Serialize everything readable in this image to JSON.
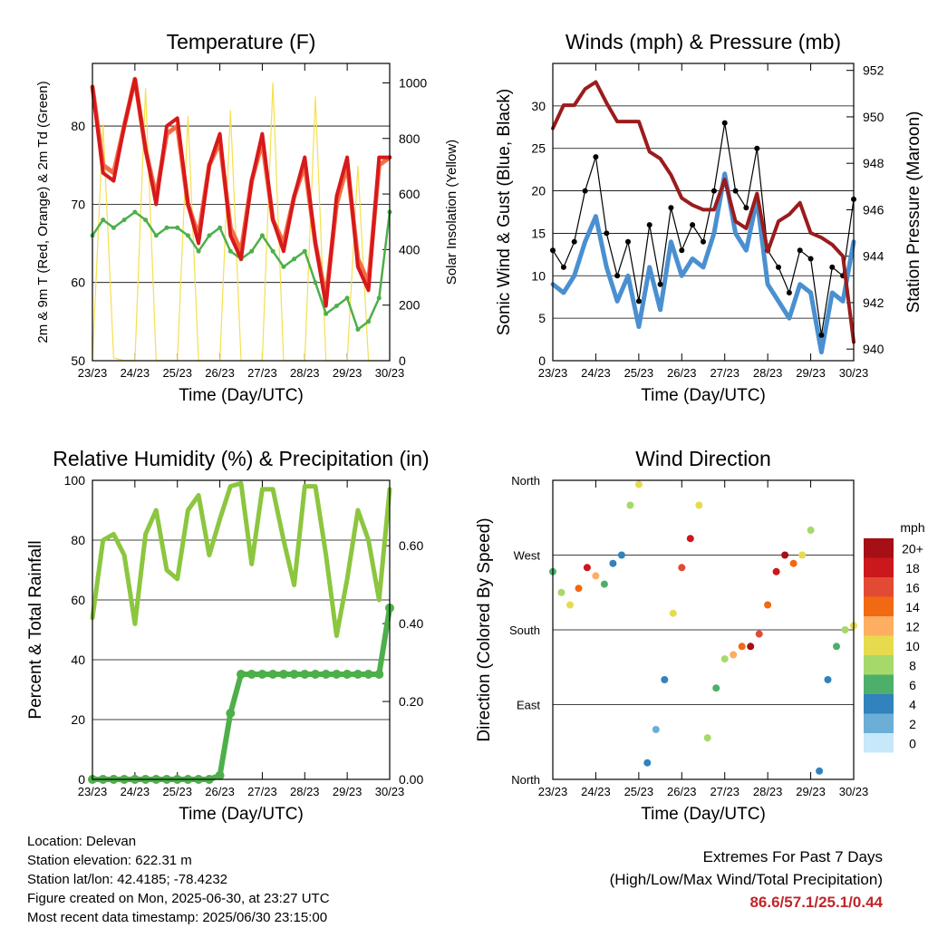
{
  "time_axis": {
    "ticks": [
      "23/23",
      "24/23",
      "25/23",
      "26/23",
      "27/23",
      "28/23",
      "29/23",
      "30/23"
    ],
    "label": "Time (Day/UTC)"
  },
  "colors": {
    "temp_2m": "#d7191c",
    "temp_9m": "#f46d43",
    "dewpoint": "#4daf4a",
    "insolation": "#f5e04d",
    "gust": "#000000",
    "sonic_wind": "#4a90d0",
    "pressure": "#9b1c1c",
    "rh": "#8cc63f",
    "precip": "#4daf4a",
    "extremes": "#c0262b"
  },
  "chart_data": [
    {
      "type": "line",
      "title": "Temperature (F)",
      "xlabel": "Time (Day/UTC)",
      "ylabel": "2m & 9m T (Red, Orange) & 2m Td (Green)",
      "y2label": "Solar Insolation (Yellow)",
      "x": [
        0,
        0.25,
        0.5,
        0.75,
        1,
        1.25,
        1.5,
        1.75,
        2,
        2.25,
        2.5,
        2.75,
        3,
        3.25,
        3.5,
        3.75,
        4,
        4.25,
        4.5,
        4.75,
        5,
        5.25,
        5.5,
        5.75,
        6,
        6.25,
        6.5,
        6.75,
        7
      ],
      "ylim": [
        50,
        88
      ],
      "yticks": [
        50,
        60,
        70,
        80
      ],
      "y2lim": [
        0,
        1070
      ],
      "y2ticks": [
        0,
        200,
        400,
        600,
        800,
        1000
      ],
      "series": [
        {
          "name": "2m T",
          "axis": "left",
          "values": [
            85,
            74,
            73,
            80,
            86,
            77,
            70,
            80,
            81,
            70,
            65,
            75,
            79,
            66,
            63,
            73,
            79,
            68,
            64,
            71,
            76,
            65,
            57,
            71,
            76,
            62,
            59,
            76,
            76
          ]
        },
        {
          "name": "9m T",
          "axis": "left",
          "values": [
            85,
            75,
            74,
            80,
            86,
            77,
            71,
            79,
            80,
            70,
            66,
            75,
            78,
            67,
            64,
            73,
            78,
            68,
            65,
            71,
            75,
            65,
            58,
            70,
            75,
            63,
            60,
            75,
            76
          ]
        },
        {
          "name": "2m Td",
          "axis": "left",
          "values": [
            66,
            68,
            67,
            68,
            69,
            68,
            66,
            67,
            67,
            66,
            64,
            66,
            67,
            64,
            63,
            64,
            66,
            64,
            62,
            63,
            64,
            60,
            56,
            57,
            58,
            54,
            55,
            58,
            69
          ]
        },
        {
          "name": "Solar Insolation",
          "axis": "right",
          "values": [
            0,
            850,
            10,
            0,
            0,
            980,
            0,
            0,
            0,
            880,
            0,
            0,
            0,
            900,
            0,
            0,
            0,
            1000,
            0,
            0,
            0,
            950,
            0,
            0,
            0,
            700,
            0,
            0,
            0
          ]
        }
      ]
    },
    {
      "type": "line",
      "title": "Winds (mph) & Pressure (mb)",
      "xlabel": "Time (Day/UTC)",
      "ylabel": "Sonic Wind & Gust (Blue, Black)",
      "y2label": "Station Pressure (Maroon)",
      "x": [
        0,
        0.25,
        0.5,
        0.75,
        1,
        1.25,
        1.5,
        1.75,
        2,
        2.25,
        2.5,
        2.75,
        3,
        3.25,
        3.5,
        3.75,
        4,
        4.25,
        4.5,
        4.75,
        5,
        5.25,
        5.5,
        5.75,
        6,
        6.25,
        6.5,
        6.75,
        7
      ],
      "ylim": [
        0,
        35
      ],
      "yticks": [
        0,
        5,
        10,
        15,
        20,
        25,
        30
      ],
      "y2lim": [
        939.5,
        952.3
      ],
      "y2ticks": [
        940,
        942,
        944,
        946,
        948,
        950,
        952
      ],
      "series": [
        {
          "name": "Gust",
          "axis": "left",
          "values": [
            13,
            11,
            14,
            20,
            24,
            15,
            10,
            14,
            7,
            16,
            9,
            18,
            13,
            16,
            14,
            20,
            28,
            20,
            18,
            25,
            13,
            11,
            8,
            13,
            12,
            3,
            11,
            10,
            19
          ]
        },
        {
          "name": "Sonic Wind",
          "axis": "left",
          "values": [
            9,
            8,
            10,
            14,
            17,
            11,
            7,
            10,
            4,
            11,
            6,
            14,
            10,
            12,
            11,
            15,
            22,
            15,
            13,
            19,
            9,
            7,
            5,
            9,
            8,
            1,
            8,
            7,
            14
          ]
        },
        {
          "name": "Station Pressure",
          "axis": "right",
          "values": [
            949.5,
            950.5,
            950.5,
            951.2,
            951.5,
            950.6,
            949.8,
            949.8,
            949.8,
            948.5,
            948.2,
            947.5,
            946.5,
            946.2,
            946,
            946,
            947.3,
            945.5,
            945.2,
            946.7,
            944.2,
            945.5,
            945.8,
            946.3,
            945,
            944.8,
            944.5,
            944,
            940.3
          ]
        }
      ]
    },
    {
      "type": "line",
      "title": "Relative Humidity (%) & Precipitation (in)",
      "xlabel": "Time (Day/UTC)",
      "ylabel": "Percent & Total Rainfall",
      "x": [
        0,
        0.25,
        0.5,
        0.75,
        1,
        1.25,
        1.5,
        1.75,
        2,
        2.25,
        2.5,
        2.75,
        3,
        3.25,
        3.5,
        3.75,
        4,
        4.25,
        4.5,
        4.75,
        5,
        5.25,
        5.5,
        5.75,
        6,
        6.25,
        6.5,
        6.75,
        7
      ],
      "ylim": [
        0,
        100
      ],
      "yticks": [
        0,
        20,
        40,
        60,
        80,
        100
      ],
      "y2lim": [
        0,
        0.768
      ],
      "y2ticks": [
        0.0,
        0.2,
        0.4,
        0.6
      ],
      "series": [
        {
          "name": "Relative Humidity",
          "axis": "left",
          "values": [
            54,
            80,
            82,
            75,
            52,
            82,
            90,
            70,
            67,
            90,
            95,
            75,
            87,
            98,
            99,
            72,
            97,
            97,
            80,
            65,
            98,
            98,
            75,
            48,
            67,
            90,
            80,
            60,
            97
          ]
        },
        {
          "name": "Total Precipitation",
          "axis": "right",
          "values": [
            0,
            0,
            0,
            0,
            0,
            0,
            0,
            0,
            0,
            0,
            0,
            0,
            0.01,
            0.17,
            0.27,
            0.27,
            0.27,
            0.27,
            0.27,
            0.27,
            0.27,
            0.27,
            0.27,
            0.27,
            0.27,
            0.27,
            0.27,
            0.27,
            0.44
          ]
        }
      ]
    },
    {
      "type": "scatter",
      "title": "Wind Direction",
      "xlabel": "Time (Day/UTC)",
      "ylabel": "Direction (Colored By Speed)",
      "yticks": [
        "North",
        "East",
        "South",
        "West",
        "North"
      ],
      "ylim": [
        0,
        360
      ],
      "legend_title": "mph",
      "legend_labels": [
        "20+",
        "18",
        "16",
        "14",
        "12",
        "10",
        "8",
        "6",
        "4",
        "2",
        "0"
      ],
      "legend_colors": [
        "#a50f15",
        "#cb181d",
        "#e34a33",
        "#f16913",
        "#fdae61",
        "#e6db4e",
        "#a6d96a",
        "#4daf6a",
        "#3182bd",
        "#6baed6",
        "#c6e8f8"
      ],
      "x": [
        0,
        0.2,
        0.4,
        0.6,
        0.8,
        1.0,
        1.2,
        1.4,
        1.6,
        1.8,
        2.0,
        2.2,
        2.4,
        2.6,
        2.8,
        3.0,
        3.2,
        3.4,
        3.6,
        3.8,
        4.0,
        4.2,
        4.4,
        4.6,
        4.8,
        5.0,
        5.2,
        5.4,
        5.6,
        5.8,
        6.0,
        6.2,
        6.4,
        6.6,
        6.8,
        7.0
      ],
      "y": [
        250,
        225,
        210,
        230,
        255,
        245,
        235,
        260,
        270,
        330,
        355,
        20,
        60,
        120,
        200,
        255,
        290,
        330,
        50,
        110,
        145,
        150,
        160,
        160,
        175,
        210,
        250,
        270,
        260,
        270,
        300,
        10,
        120,
        160,
        180,
        185
      ],
      "speed": [
        6,
        8,
        10,
        14,
        18,
        12,
        6,
        4,
        4,
        8,
        10,
        3,
        2,
        4,
        10,
        16,
        18,
        10,
        8,
        6,
        8,
        12,
        14,
        20,
        16,
        14,
        18,
        20,
        14,
        10,
        8,
        3,
        4,
        6,
        8,
        10
      ]
    }
  ],
  "info": {
    "location": "Location: Delevan",
    "elevation": "Station elevation: 622.31 m",
    "latlon": "Station lat/lon: 42.4185; -78.4232",
    "created": "Figure created on Mon, 2025-06-30, at 23:27 UTC",
    "latest": "Most recent data timestamp: 2025/06/30 23:15:00"
  },
  "extremes": {
    "line1": "Extremes For Past 7 Days",
    "line2": "(High/Low/Max Wind/Total Precipitation)",
    "values": "86.6/57.1/25.1/0.44"
  }
}
